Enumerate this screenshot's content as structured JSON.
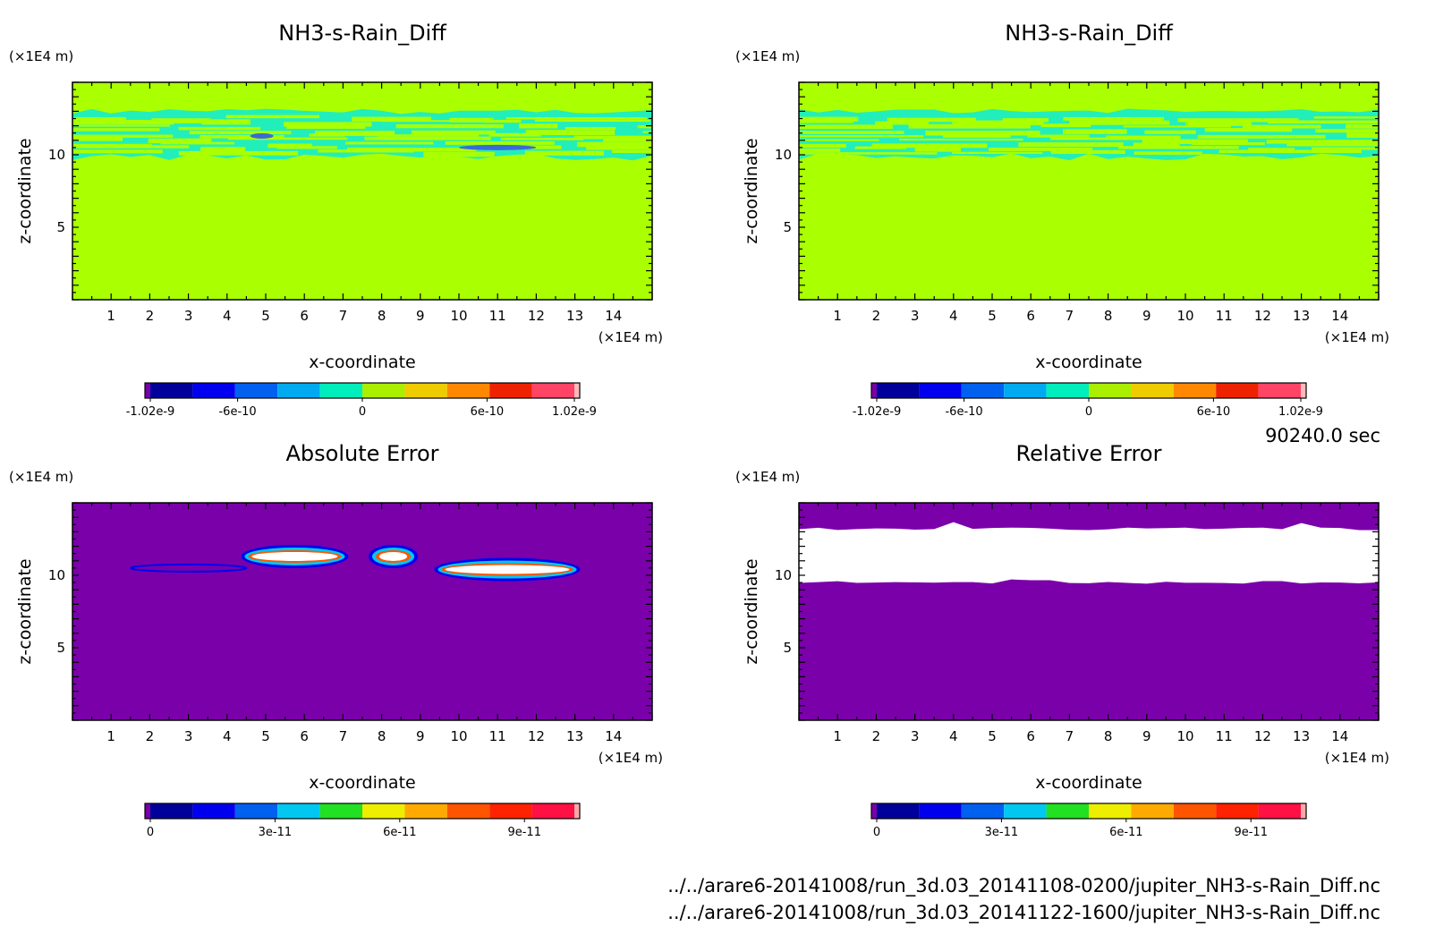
{
  "time_label": "90240.0 sec",
  "files": [
    "../../arare6-20141008/run_3d.03_20141108-0200/jupiter_NH3-s-Rain_Diff.nc",
    "../../arare6-20141008/run_3d.03_20141122-1600/jupiter_NH3-s-Rain_Diff.nc"
  ],
  "chart_data": [
    {
      "type": "heatmap",
      "title": "NH3-s-Rain_Diff",
      "xlabel": "x-coordinate",
      "ylabel": "z-coordinate",
      "x_unit": "(×1E4 m)",
      "y_unit": "(×1E4 m)",
      "xlim": [
        0,
        15
      ],
      "ylim": [
        0,
        15
      ],
      "x_ticks": [
        1,
        2,
        3,
        4,
        5,
        6,
        7,
        8,
        9,
        10,
        11,
        12,
        13,
        14
      ],
      "y_ticks": [
        5,
        10
      ],
      "background_color": "#aaff00",
      "colorbar": {
        "colors": [
          "#7a00aa",
          "#00009a",
          "#0000ee",
          "#0060f0",
          "#00aaf0",
          "#00eebb",
          "#aaee00",
          "#eecc00",
          "#ff8800",
          "#ee2200",
          "#ff4466",
          "#ffbbbb"
        ],
        "tick_labels": [
          "-1.02e-9",
          "-6e-10",
          "0",
          "6e-10",
          "1.02e-9"
        ],
        "tick_values": [
          -1.02e-09,
          -6e-10,
          0,
          6e-10,
          1.02e-09
        ],
        "range": [
          -1.02e-09,
          1.02e-09
        ]
      },
      "features": [
        {
          "level": "slightly negative (cyan)",
          "z_range": [
            10.0,
            13.0
          ],
          "x_range": [
            0,
            15
          ]
        },
        {
          "level": "negative (blue)",
          "x_range": [
            4.6,
            5.2
          ],
          "z": 11.3
        },
        {
          "level": "negative (blue)",
          "x_range": [
            10.0,
            12.0
          ],
          "z": 10.5
        }
      ]
    },
    {
      "type": "heatmap",
      "title": "NH3-s-Rain_Diff",
      "xlabel": "x-coordinate",
      "ylabel": "z-coordinate",
      "x_unit": "(×1E4 m)",
      "y_unit": "(×1E4 m)",
      "xlim": [
        0,
        15
      ],
      "ylim": [
        0,
        15
      ],
      "x_ticks": [
        1,
        2,
        3,
        4,
        5,
        6,
        7,
        8,
        9,
        10,
        11,
        12,
        13,
        14
      ],
      "y_ticks": [
        5,
        10
      ],
      "background_color": "#aaff00",
      "colorbar": {
        "colors": [
          "#7a00aa",
          "#00009a",
          "#0000ee",
          "#0060f0",
          "#00aaf0",
          "#00eebb",
          "#aaee00",
          "#eecc00",
          "#ff8800",
          "#ee2200",
          "#ff4466",
          "#ffbbbb"
        ],
        "tick_labels": [
          "-1.02e-9",
          "-6e-10",
          "0",
          "6e-10",
          "1.02e-9"
        ],
        "tick_values": [
          -1.02e-09,
          -6e-10,
          0,
          6e-10,
          1.02e-09
        ],
        "range": [
          -1.02e-09,
          1.02e-09
        ]
      },
      "features": [
        {
          "level": "slightly negative (cyan)",
          "z_range": [
            10.0,
            13.0
          ],
          "x_range": [
            0,
            15
          ]
        }
      ]
    },
    {
      "type": "heatmap",
      "title": "Absolute Error",
      "xlabel": "x-coordinate",
      "ylabel": "z-coordinate",
      "x_unit": "(×1E4 m)",
      "y_unit": "(×1E4 m)",
      "xlim": [
        0,
        15
      ],
      "ylim": [
        0,
        15
      ],
      "x_ticks": [
        1,
        2,
        3,
        4,
        5,
        6,
        7,
        8,
        9,
        10,
        11,
        12,
        13,
        14
      ],
      "y_ticks": [
        5,
        10
      ],
      "background_color": "#7a00aa",
      "colorbar": {
        "colors": [
          "#7a00aa",
          "#00009a",
          "#0000ee",
          "#0060f0",
          "#00c8f0",
          "#22e022",
          "#eeee00",
          "#ffaa00",
          "#ff5500",
          "#ff2200",
          "#ff1144",
          "#ffaaaa"
        ],
        "tick_labels": [
          "0",
          "3e-11",
          "6e-11",
          "9e-11"
        ],
        "tick_values": [
          0,
          3e-11,
          6e-11,
          9e-11
        ],
        "range": [
          0,
          1.02e-10
        ]
      },
      "features": [
        {
          "level": "high (white core)",
          "x_range": [
            4.5,
            7.0
          ],
          "z": 11.3
        },
        {
          "level": "high (white core)",
          "x_range": [
            7.8,
            8.8
          ],
          "z": 11.3
        },
        {
          "level": "high (white core)",
          "x_range": [
            9.5,
            13.0
          ],
          "z": 10.4
        },
        {
          "level": "low (blue)",
          "x_range": [
            1.5,
            4.5
          ],
          "z": 10.5
        }
      ]
    },
    {
      "type": "heatmap",
      "title": "Relative Error",
      "xlabel": "x-coordinate",
      "ylabel": "z-coordinate",
      "x_unit": "(×1E4 m)",
      "y_unit": "(×1E4 m)",
      "xlim": [
        0,
        15
      ],
      "ylim": [
        0,
        15
      ],
      "x_ticks": [
        1,
        2,
        3,
        4,
        5,
        6,
        7,
        8,
        9,
        10,
        11,
        12,
        13,
        14
      ],
      "y_ticks": [
        5,
        10
      ],
      "background_color": "#7a00aa",
      "colorbar": {
        "colors": [
          "#7a00aa",
          "#00009a",
          "#0000ee",
          "#0060f0",
          "#00c8f0",
          "#22e022",
          "#eeee00",
          "#ffaa00",
          "#ff5500",
          "#ff2200",
          "#ff1144",
          "#ffaaaa"
        ],
        "tick_labels": [
          "0",
          "3e-11",
          "6e-11",
          "9e-11"
        ],
        "tick_values": [
          0,
          3e-11,
          6e-11,
          9e-11
        ],
        "range": [
          0,
          1.02e-10
        ]
      },
      "features": [
        {
          "level": "white (out of range)",
          "z_range": [
            10.0,
            13.2
          ],
          "x_range": [
            0,
            15
          ]
        }
      ]
    }
  ]
}
